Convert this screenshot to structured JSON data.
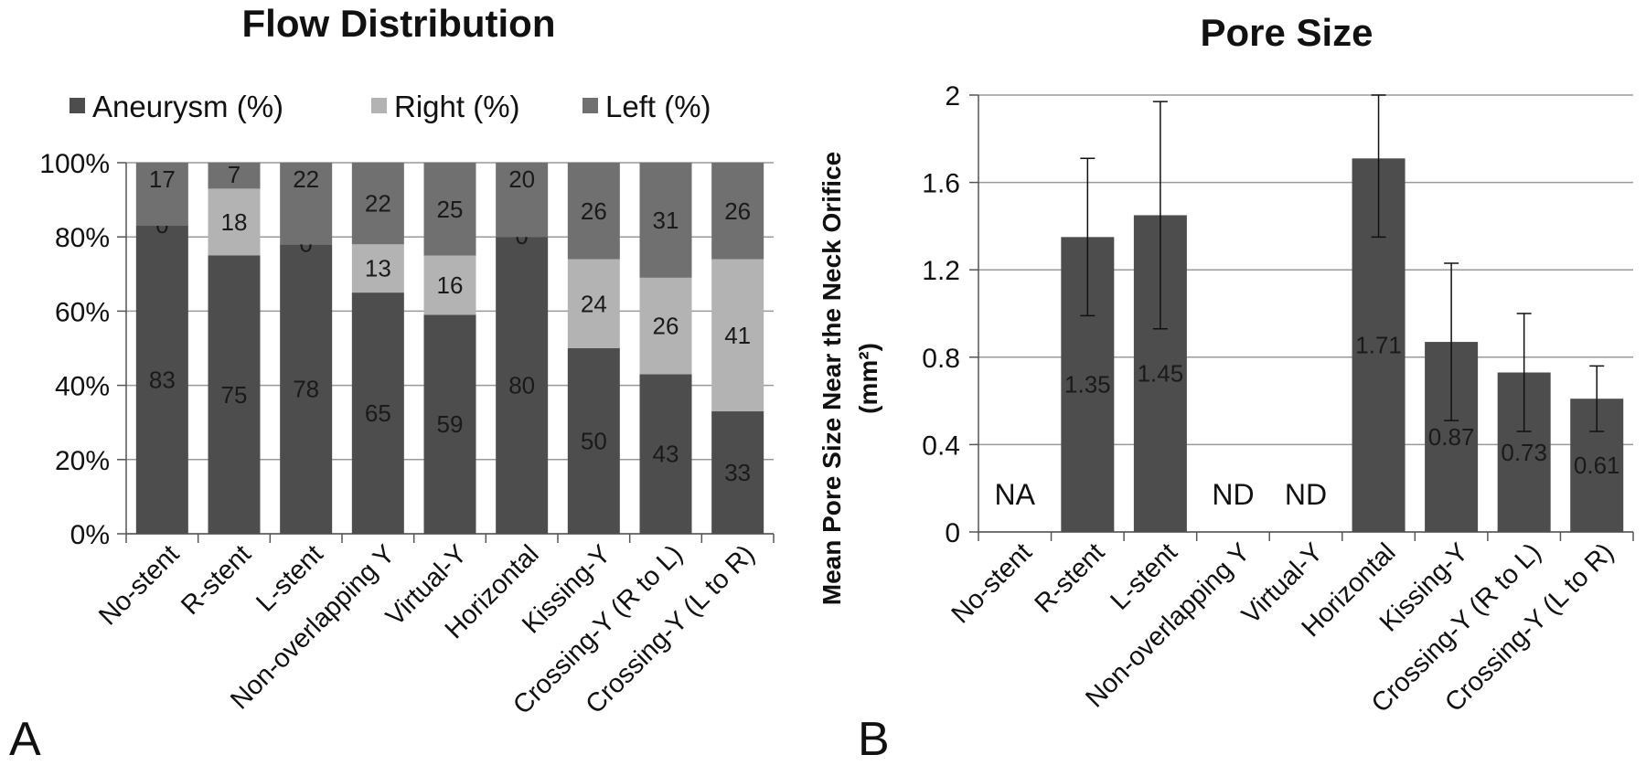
{
  "chart_data": [
    {
      "panel_label": "A",
      "type": "bar",
      "stacked": true,
      "title": "Flow Distribution",
      "colors": {
        "aneurysm": "#4d4d4d",
        "right": "#b3b3b3",
        "left": "#707070"
      },
      "categories": [
        "No-stent",
        "R-stent",
        "L-stent",
        "Non-overlapping Y",
        "Virtual-Y",
        "Horizontal",
        "Kissing-Y",
        "Crossing-Y (R to L)",
        "Crossing-Y (L to R)"
      ],
      "series": [
        {
          "name": "Aneurysm (%)",
          "values": [
            83,
            75,
            78,
            65,
            59,
            80,
            50,
            43,
            33
          ]
        },
        {
          "name": "Right (%)",
          "values": [
            0,
            18,
            0,
            13,
            16,
            0,
            24,
            26,
            41
          ]
        },
        {
          "name": "Left (%)",
          "values": [
            17,
            7,
            22,
            22,
            25,
            20,
            26,
            31,
            26
          ]
        }
      ],
      "yticks": [
        "0%",
        "20%",
        "40%",
        "60%",
        "80%",
        "100%"
      ],
      "ylim": [
        0,
        100
      ],
      "legend_position": "top"
    },
    {
      "panel_label": "B",
      "type": "bar",
      "title": "Pore Size",
      "ylabel": "Mean Pore Size Near the Neck Orifice",
      "ylabel_unit": "(mm²)",
      "color": "#4d4d4d",
      "categories": [
        "No-stent",
        "R-stent",
        "L-stent",
        "Non-overlapping Y",
        "Virtual-Y",
        "Horizontal",
        "Kissing-Y",
        "Crossing-Y (R to L)",
        "Crossing-Y (L to R)"
      ],
      "values": [
        null,
        1.35,
        1.45,
        null,
        null,
        1.71,
        0.87,
        0.73,
        0.61
      ],
      "value_labels": [
        "NA",
        "1.35",
        "1.45",
        "ND",
        "ND",
        "1.71",
        "0.87",
        "0.73",
        "0.61"
      ],
      "error_bars": [
        null,
        [
          0.99,
          1.71
        ],
        [
          0.93,
          1.97
        ],
        null,
        null,
        [
          1.35,
          2.0
        ],
        [
          0.51,
          1.23
        ],
        [
          0.46,
          1.0
        ],
        [
          0.46,
          0.76
        ]
      ],
      "yticks": [
        "0",
        "0.4",
        "0.8",
        "1.2",
        "1.6",
        "2"
      ],
      "ylim": [
        0,
        2
      ],
      "grid": true
    }
  ]
}
